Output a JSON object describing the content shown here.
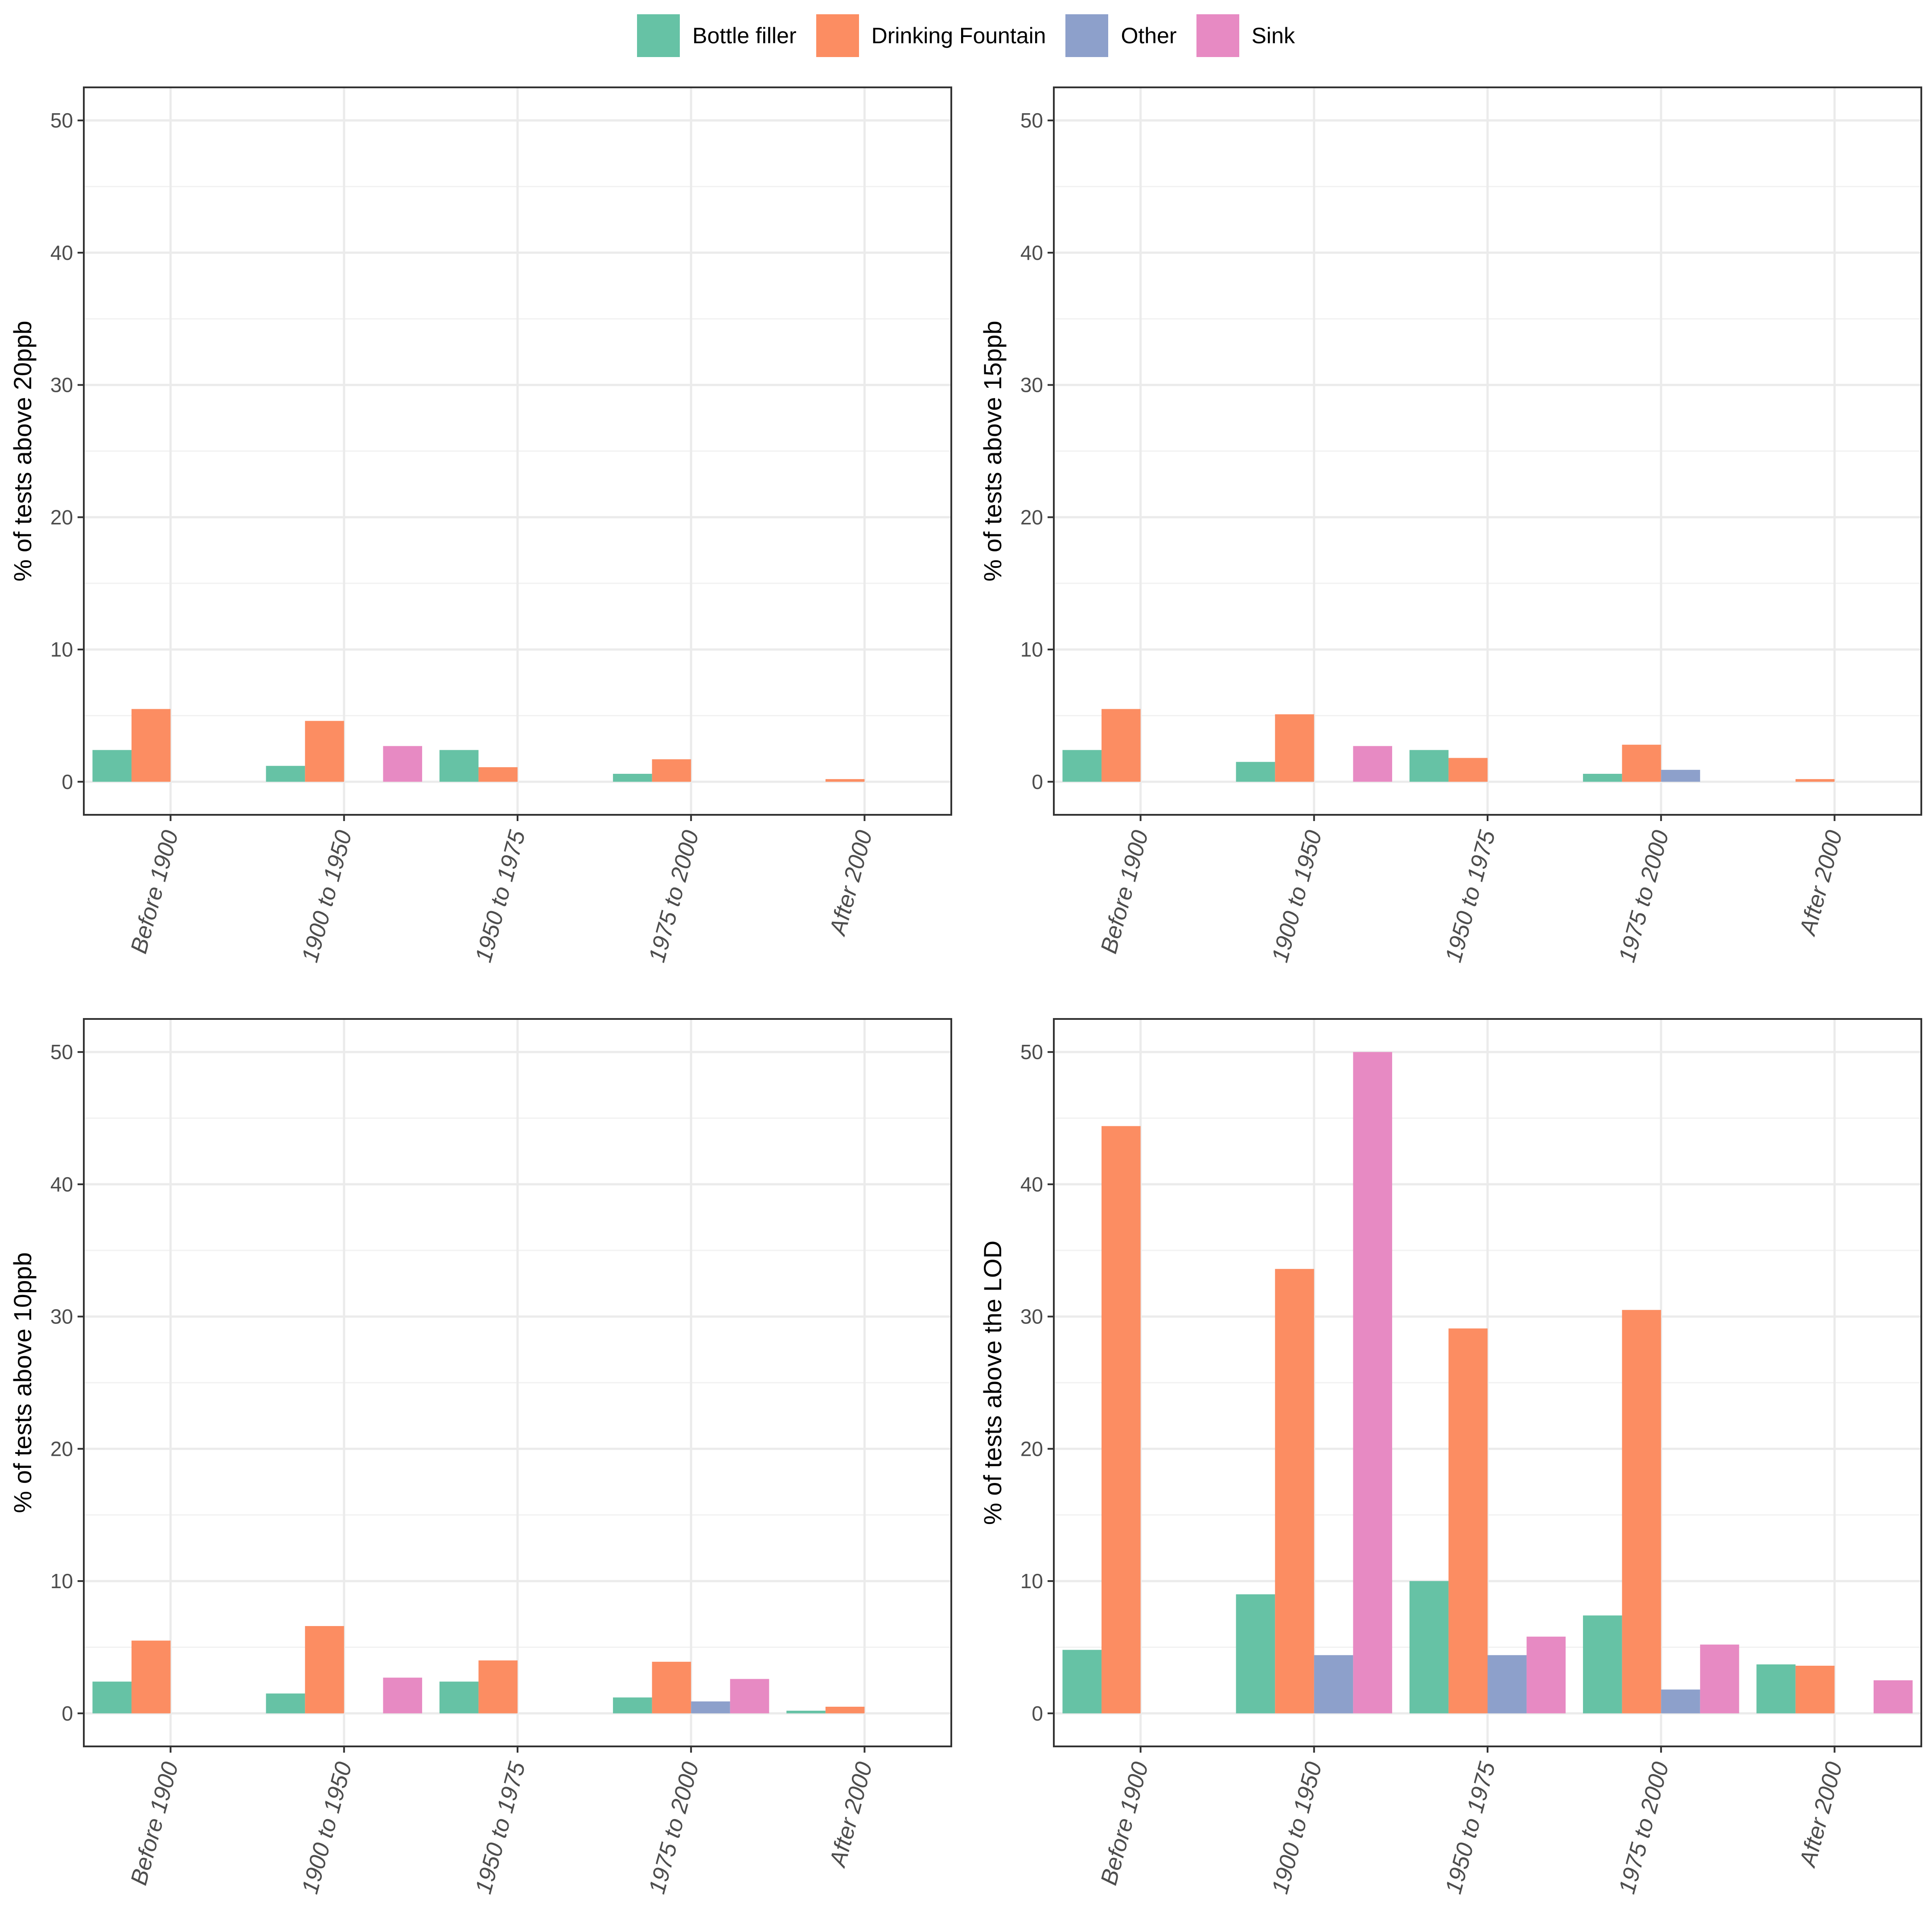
{
  "legend": {
    "items": [
      {
        "label": "Bottle filler",
        "color": "#66c2a5"
      },
      {
        "label": "Drinking Fountain",
        "color": "#fc8d62"
      },
      {
        "label": "Other",
        "color": "#8da0cb"
      },
      {
        "label": "Sink",
        "color": "#e78ac3"
      }
    ]
  },
  "chart_data": [
    {
      "type": "bar",
      "ylabel": "% of tests above 20ppb",
      "xlabel": "",
      "ylim": [
        0,
        50
      ],
      "yticks": [
        "0",
        "10",
        "20",
        "30",
        "40",
        "50"
      ],
      "categories": [
        "Before 1900",
        "1900 to 1950",
        "1950 to 1975",
        "1975 to 2000",
        "After 2000"
      ],
      "series": [
        {
          "name": "Bottle filler",
          "values": [
            2.4,
            1.2,
            2.4,
            0.6,
            0
          ]
        },
        {
          "name": "Drinking Fountain",
          "values": [
            5.5,
            4.6,
            1.1,
            1.7,
            0.2
          ]
        },
        {
          "name": "Other",
          "values": [
            0,
            0,
            0,
            0,
            0
          ]
        },
        {
          "name": "Sink",
          "values": [
            0,
            2.7,
            0,
            0,
            0
          ]
        }
      ]
    },
    {
      "type": "bar",
      "ylabel": "% of tests above 15ppb",
      "xlabel": "",
      "ylim": [
        0,
        50
      ],
      "yticks": [
        "0",
        "10",
        "20",
        "30",
        "40",
        "50"
      ],
      "categories": [
        "Before 1900",
        "1900 to 1950",
        "1950 to 1975",
        "1975 to 2000",
        "After 2000"
      ],
      "series": [
        {
          "name": "Bottle filler",
          "values": [
            2.4,
            1.5,
            2.4,
            0.6,
            0
          ]
        },
        {
          "name": "Drinking Fountain",
          "values": [
            5.5,
            5.1,
            1.8,
            2.8,
            0.2
          ]
        },
        {
          "name": "Other",
          "values": [
            0,
            0,
            0,
            0.9,
            0
          ]
        },
        {
          "name": "Sink",
          "values": [
            0,
            2.7,
            0,
            0,
            0
          ]
        }
      ]
    },
    {
      "type": "bar",
      "ylabel": "% of tests above 10ppb",
      "xlabel": "",
      "ylim": [
        0,
        50
      ],
      "yticks": [
        "0",
        "10",
        "20",
        "30",
        "40",
        "50"
      ],
      "categories": [
        "Before 1900",
        "1900 to 1950",
        "1950 to 1975",
        "1975 to 2000",
        "After 2000"
      ],
      "series": [
        {
          "name": "Bottle filler",
          "values": [
            2.4,
            1.5,
            2.4,
            1.2,
            0.2
          ]
        },
        {
          "name": "Drinking Fountain",
          "values": [
            5.5,
            6.6,
            4.0,
            3.9,
            0.5
          ]
        },
        {
          "name": "Other",
          "values": [
            0,
            0,
            0,
            0.9,
            0
          ]
        },
        {
          "name": "Sink",
          "values": [
            0,
            2.7,
            0,
            2.6,
            0
          ]
        }
      ]
    },
    {
      "type": "bar",
      "ylabel": "% of tests above the LOD",
      "xlabel": "",
      "ylim": [
        0,
        50
      ],
      "yticks": [
        "0",
        "10",
        "20",
        "30",
        "40",
        "50"
      ],
      "categories": [
        "Before 1900",
        "1900 to 1950",
        "1950 to 1975",
        "1975 to 2000",
        "After 2000"
      ],
      "series": [
        {
          "name": "Bottle filler",
          "values": [
            4.8,
            9.0,
            10.0,
            7.4,
            3.7
          ]
        },
        {
          "name": "Drinking Fountain",
          "values": [
            44.4,
            33.6,
            29.1,
            30.5,
            3.6
          ]
        },
        {
          "name": "Other",
          "values": [
            0,
            4.4,
            4.4,
            1.8,
            0
          ]
        },
        {
          "name": "Sink",
          "values": [
            0,
            50.0,
            5.8,
            5.2,
            2.5
          ]
        }
      ]
    }
  ]
}
